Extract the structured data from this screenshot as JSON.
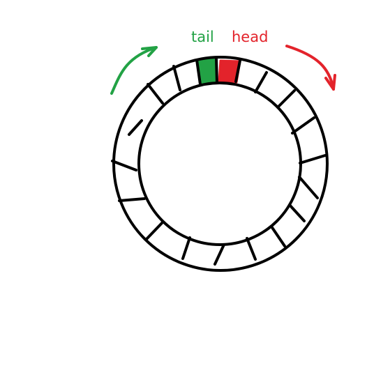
{
  "labels": {
    "tail": "tail",
    "head": "head"
  },
  "ring": {
    "slot_count": 22
  },
  "colors": {
    "outline": "#000000",
    "tail": "#22a245",
    "head": "#e3232b",
    "background": "#ffffff"
  }
}
